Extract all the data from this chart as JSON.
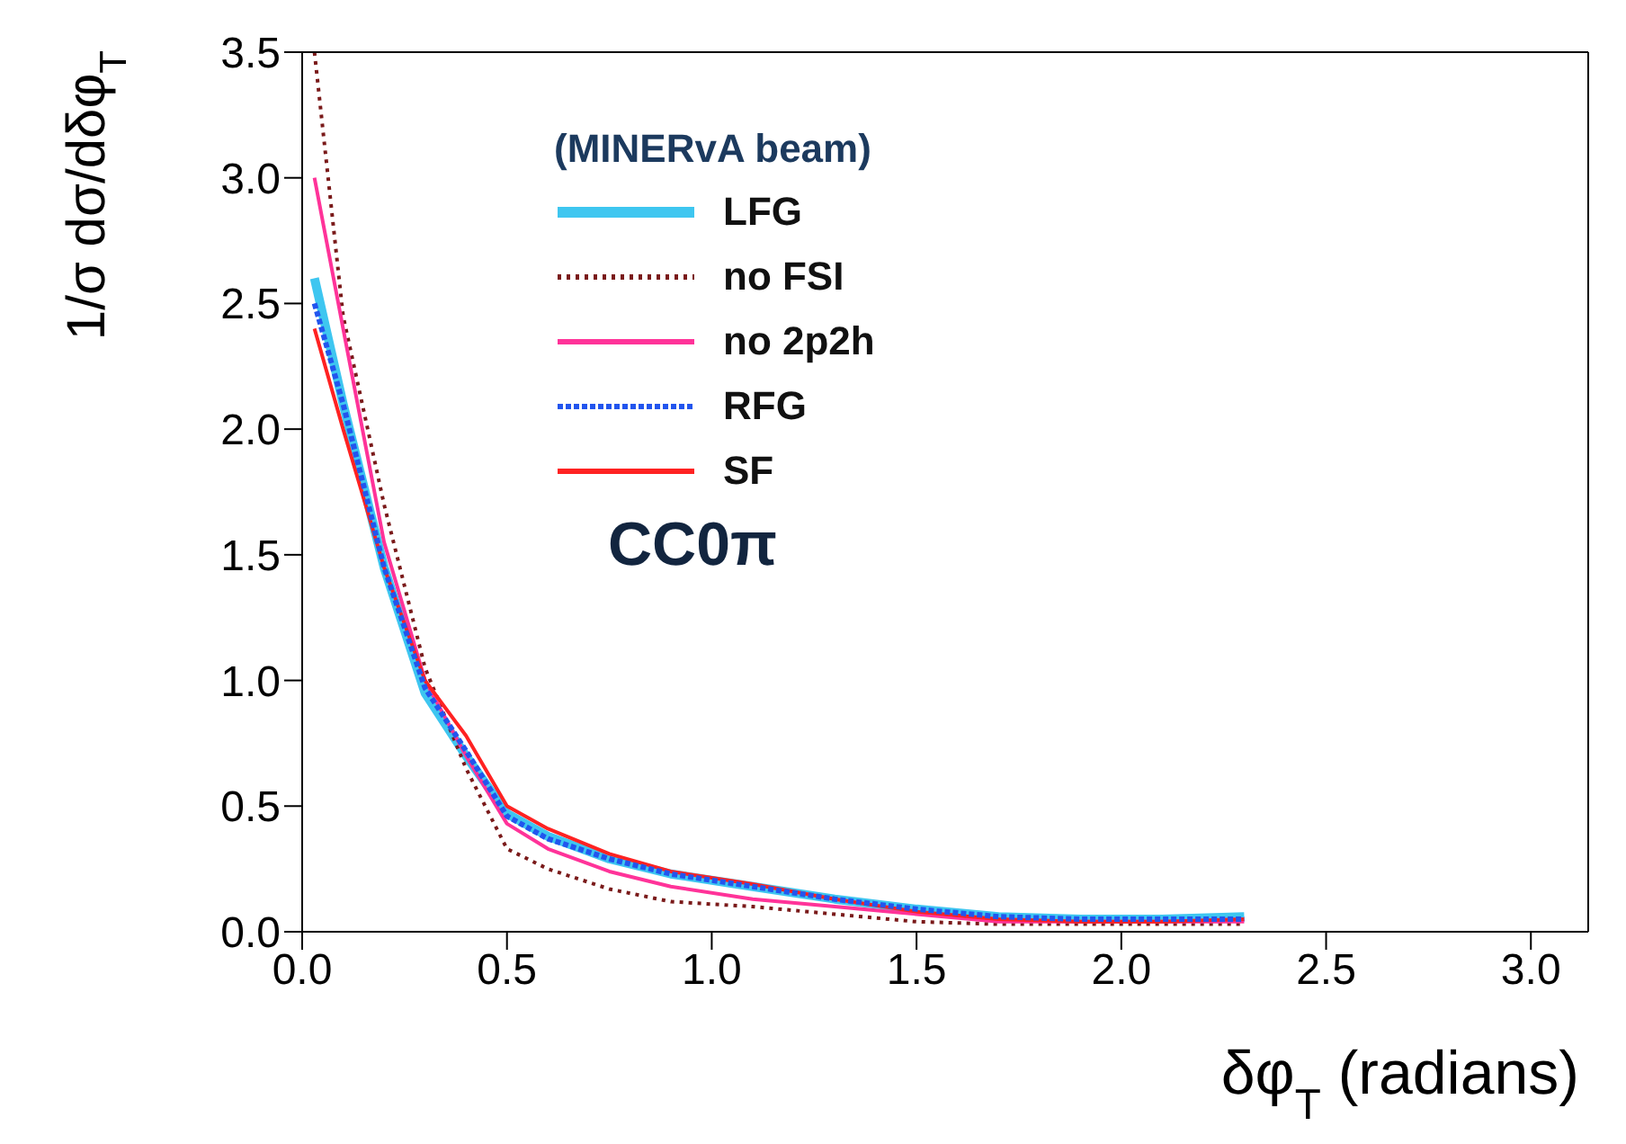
{
  "chart_data": {
    "type": "line",
    "xlabel": "δφ$_{T}$ (radians)",
    "ylabel": "1/σ dσ/dδφ$_{T}$",
    "legend_title": "(MINERvA beam)",
    "annotations": [
      "CC0π"
    ],
    "x": [
      0.03,
      0.1,
      0.2,
      0.3,
      0.4,
      0.5,
      0.6,
      0.75,
      0.9,
      1.1,
      1.3,
      1.5,
      1.7,
      1.9,
      2.1,
      2.3
    ],
    "series": [
      {
        "name": "LFG",
        "color": "#3ec6f0",
        "line_style": "solid",
        "values": [
          2.6,
          2.1,
          1.45,
          0.95,
          0.7,
          0.47,
          0.38,
          0.29,
          0.23,
          0.18,
          0.13,
          0.09,
          0.06,
          0.05,
          0.05,
          0.06
        ]
      },
      {
        "name": "no FSI",
        "color": "#7a1a1a",
        "line_style": "dotted",
        "values": [
          3.5,
          2.45,
          1.7,
          1.05,
          0.65,
          0.33,
          0.25,
          0.17,
          0.12,
          0.1,
          0.07,
          0.04,
          0.03,
          0.03,
          0.03,
          0.03
        ]
      },
      {
        "name": "no 2p2h",
        "color": "#ff3399",
        "line_style": "solid",
        "values": [
          3.0,
          2.4,
          1.55,
          1.0,
          0.7,
          0.43,
          0.33,
          0.24,
          0.18,
          0.13,
          0.1,
          0.07,
          0.04,
          0.04,
          0.04,
          0.04
        ]
      },
      {
        "name": "RFG",
        "color": "#2255ee",
        "line_style": "dashed",
        "values": [
          2.5,
          2.1,
          1.45,
          0.97,
          0.72,
          0.46,
          0.37,
          0.29,
          0.23,
          0.18,
          0.13,
          0.09,
          0.06,
          0.05,
          0.05,
          0.05
        ]
      },
      {
        "name": "SF",
        "color": "#ff2222",
        "line_style": "solid",
        "values": [
          2.4,
          2.0,
          1.45,
          1.0,
          0.78,
          0.5,
          0.41,
          0.31,
          0.24,
          0.19,
          0.13,
          0.08,
          0.05,
          0.04,
          0.04,
          0.05
        ]
      }
    ],
    "xlim": [
      0,
      3.14
    ],
    "xticks": [
      {
        "value": 0,
        "label": "0.0"
      },
      {
        "value": 0.5,
        "label": "0.5"
      },
      {
        "value": 1,
        "label": "1.0"
      },
      {
        "value": 1.5,
        "label": "1.5"
      },
      {
        "value": 2,
        "label": "2.0"
      },
      {
        "value": 2.5,
        "label": "2.5"
      },
      {
        "value": 3,
        "label": "3.0"
      }
    ],
    "ylim": [
      0,
      3.5
    ],
    "yticks": [
      {
        "value": 0,
        "label": "0.0"
      },
      {
        "value": 0.5,
        "label": "0.5"
      },
      {
        "value": 1,
        "label": "1.0"
      },
      {
        "value": 1.5,
        "label": "1.5"
      },
      {
        "value": 2,
        "label": "2.0"
      },
      {
        "value": 2.5,
        "label": "2.5"
      },
      {
        "value": 3,
        "label": "3.0"
      },
      {
        "value": 3.5,
        "label": "3.5"
      }
    ],
    "grid": false,
    "legend": "top",
    "marker": "none"
  }
}
